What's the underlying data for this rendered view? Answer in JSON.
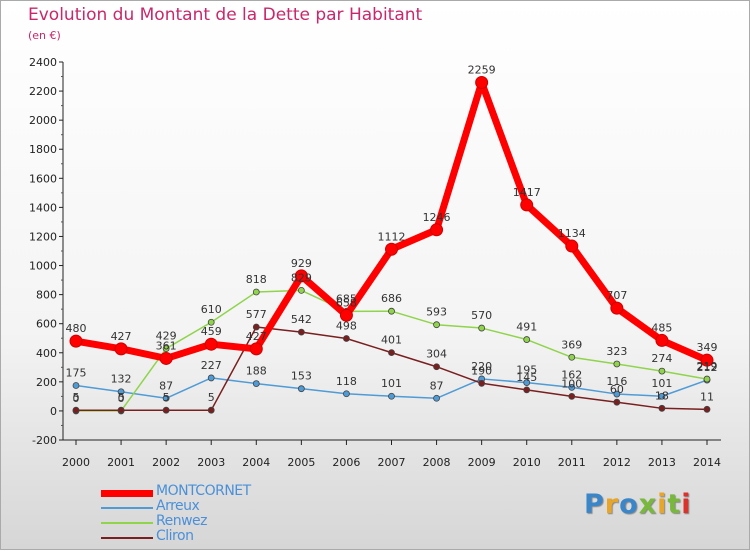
{
  "title": "Evolution du Montant de la Dette par Habitant",
  "subtitle": "(en €)",
  "logo": {
    "text": "Proxiti",
    "colors": [
      "#3a86c8",
      "#e7a52a",
      "#3a86c8",
      "#78b83a",
      "#e7a52a",
      "#78b83a",
      "#d9332b"
    ]
  },
  "chart_data": {
    "type": "line",
    "title": "Evolution du Montant de la Dette par Habitant",
    "ylabel": "(en €)",
    "x": [
      "2000",
      "2001",
      "2002",
      "2003",
      "2004",
      "2005",
      "2006",
      "2007",
      "2008",
      "2009",
      "2010",
      "2011",
      "2012",
      "2013",
      "2014"
    ],
    "ylim": [
      -200,
      2400
    ],
    "yticks": [
      -200,
      0,
      200,
      400,
      600,
      800,
      1000,
      1200,
      1400,
      1600,
      1800,
      2000,
      2200,
      2400
    ],
    "grid": false,
    "legend": "bottom-left",
    "series": [
      {
        "name": "MONTCORNET",
        "color": "#ff0000",
        "values": [
          480,
          427,
          361,
          459,
          427,
          929,
          658,
          1112,
          1246,
          2259,
          1417,
          1134,
          707,
          485,
          349
        ],
        "labels": [
          "480",
          "427",
          "361",
          "459",
          "427",
          "929",
          "658",
          "1112",
          "1246",
          "2259",
          "1417",
          "1134",
          "707",
          "485",
          "349"
        ]
      },
      {
        "name": "Arreux",
        "color": "#4f9bd6",
        "values": [
          175,
          132,
          87,
          227,
          188,
          153,
          118,
          101,
          87,
          220,
          195,
          162,
          116,
          101,
          212
        ],
        "labels": [
          "175",
          "132",
          "87",
          "227",
          "188",
          "153",
          "118",
          "101",
          "87",
          "220",
          "195",
          "162",
          "116",
          "101",
          "212"
        ]
      },
      {
        "name": "Renwez",
        "color": "#8fd44b",
        "values": [
          0,
          0,
          429,
          610,
          818,
          829,
          685,
          686,
          593,
          570,
          491,
          369,
          323,
          274,
          219
        ],
        "labels": [
          "0",
          "0",
          "429",
          "610",
          "818",
          "829",
          "685",
          "686",
          "593",
          "570",
          "491",
          "369",
          "323",
          "274",
          "219"
        ]
      },
      {
        "name": "Cliron",
        "color": "#7a1f1f",
        "values": [
          5,
          5,
          5,
          5,
          577,
          542,
          498,
          401,
          304,
          190,
          145,
          100,
          60,
          18,
          11
        ],
        "labels": [
          "5",
          "5",
          "5",
          "5",
          "577",
          "542",
          "498",
          "401",
          "304",
          "190",
          "145",
          "100",
          "60",
          "18",
          "11"
        ]
      }
    ]
  }
}
